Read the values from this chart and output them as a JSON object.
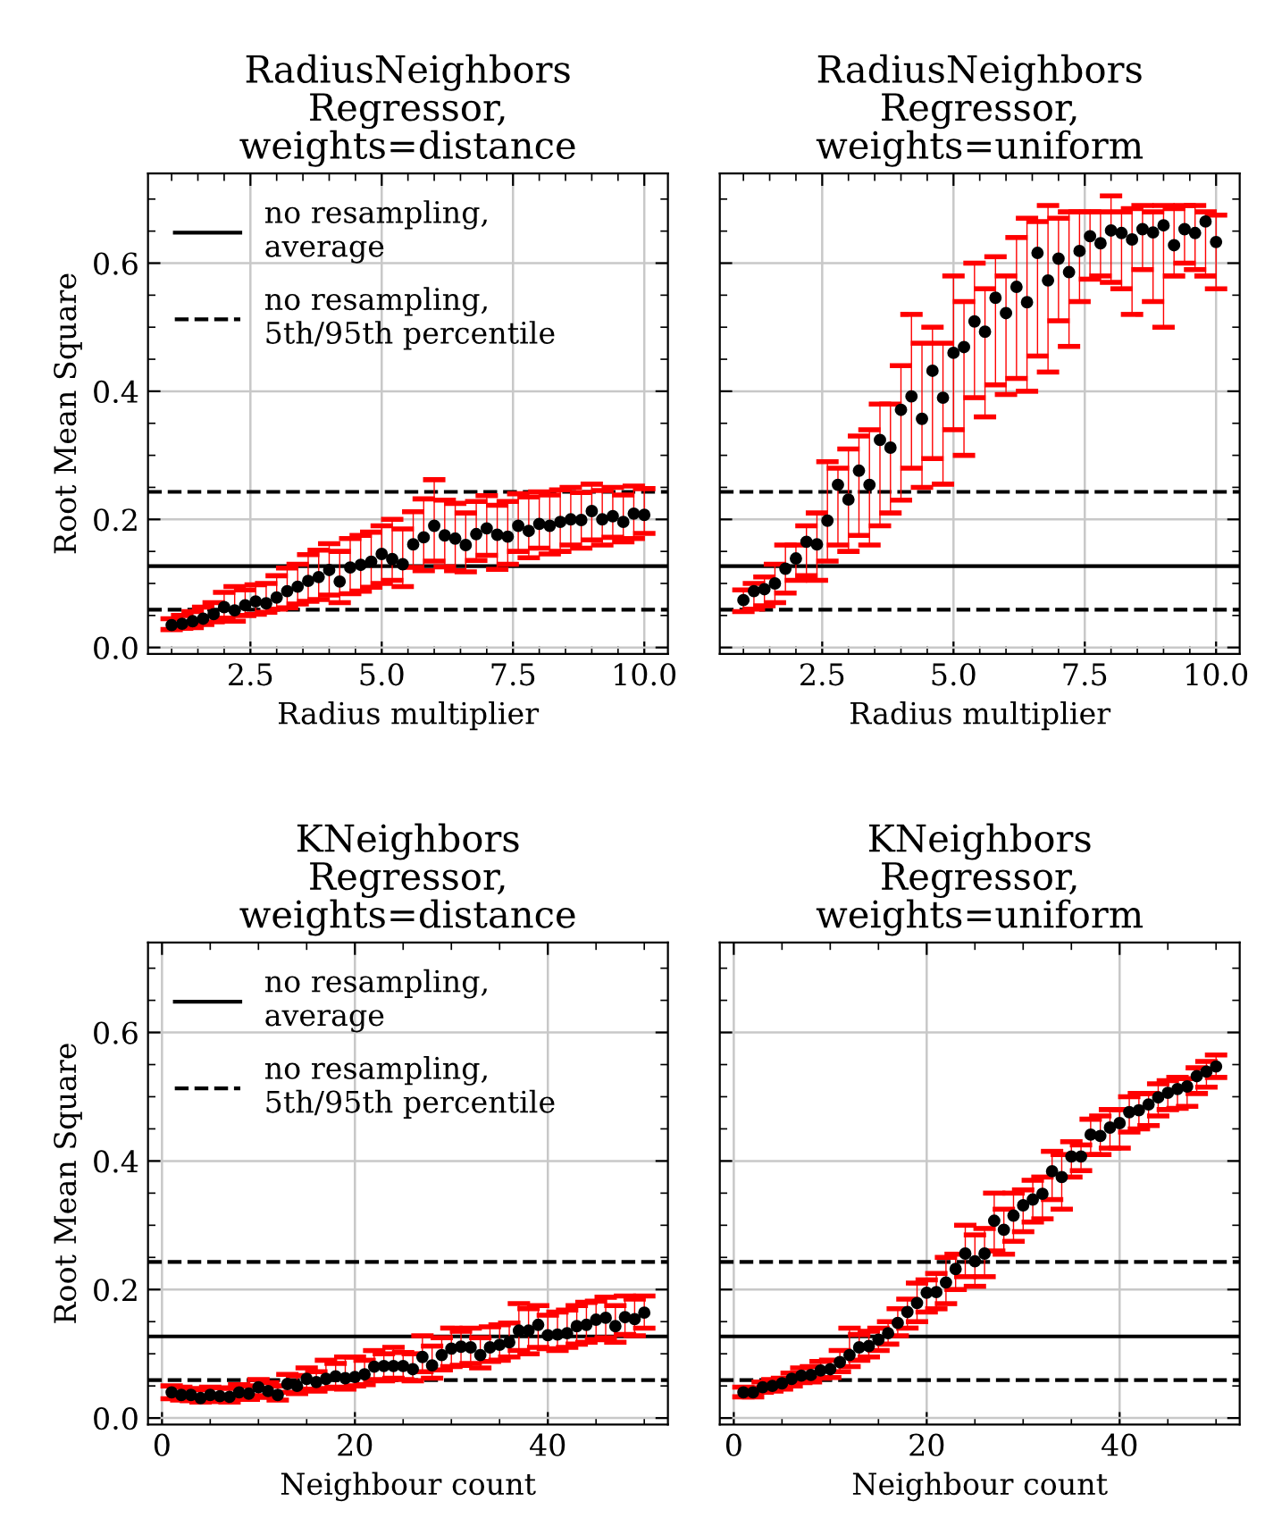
{
  "chart_data": [
    {
      "type": "scatter",
      "title": "RadiusNeighbors\nRegressor,\nweights=distance",
      "xlabel": "Radius multiplier",
      "ylabel": "Root Mean Square",
      "x": [
        1.0,
        1.2,
        1.4,
        1.6,
        1.8,
        2.0,
        2.2,
        2.4,
        2.6,
        2.8,
        3.0,
        3.2,
        3.4,
        3.6,
        3.8,
        4.0,
        4.2,
        4.4,
        4.6,
        4.8,
        5.0,
        5.2,
        5.4,
        5.6,
        5.8,
        6.0,
        6.2,
        6.4,
        6.6,
        6.8,
        7.0,
        7.2,
        7.4,
        7.6,
        7.8,
        8.0,
        8.2,
        8.4,
        8.6,
        8.8,
        9.0,
        9.2,
        9.4,
        9.6,
        9.8,
        10.0
      ],
      "series": [
        {
          "color": "#000000",
          "marker": "circle",
          "values": [
            0.035,
            0.037,
            0.041,
            0.045,
            0.052,
            0.063,
            0.058,
            0.066,
            0.072,
            0.069,
            0.078,
            0.088,
            0.095,
            0.104,
            0.11,
            0.121,
            0.103,
            0.125,
            0.129,
            0.134,
            0.146,
            0.138,
            0.13,
            0.161,
            0.172,
            0.19,
            0.175,
            0.17,
            0.16,
            0.177,
            0.186,
            0.176,
            0.173,
            0.19,
            0.182,
            0.193,
            0.19,
            0.196,
            0.2,
            0.199,
            0.213,
            0.2,
            0.205,
            0.196,
            0.209,
            0.207
          ],
          "errors": [
            [
              0.028,
              0.045
            ],
            [
              0.03,
              0.05
            ],
            [
              0.031,
              0.056
            ],
            [
              0.036,
              0.063
            ],
            [
              0.04,
              0.07
            ],
            [
              0.046,
              0.086
            ],
            [
              0.041,
              0.095
            ],
            [
              0.05,
              0.09
            ],
            [
              0.052,
              0.098
            ],
            [
              0.055,
              0.1
            ],
            [
              0.06,
              0.112
            ],
            [
              0.062,
              0.124
            ],
            [
              0.068,
              0.13
            ],
            [
              0.072,
              0.145
            ],
            [
              0.075,
              0.152
            ],
            [
              0.082,
              0.162
            ],
            [
              0.07,
              0.15
            ],
            [
              0.084,
              0.17
            ],
            [
              0.088,
              0.175
            ],
            [
              0.094,
              0.18
            ],
            [
              0.1,
              0.19
            ],
            [
              0.105,
              0.2
            ],
            [
              0.095,
              0.185
            ],
            [
              0.125,
              0.212
            ],
            [
              0.12,
              0.232
            ],
            [
              0.135,
              0.262
            ],
            [
              0.126,
              0.23
            ],
            [
              0.12,
              0.225
            ],
            [
              0.118,
              0.21
            ],
            [
              0.136,
              0.228
            ],
            [
              0.144,
              0.237
            ],
            [
              0.122,
              0.222
            ],
            [
              0.13,
              0.228
            ],
            [
              0.15,
              0.24
            ],
            [
              0.14,
              0.235
            ],
            [
              0.155,
              0.243
            ],
            [
              0.146,
              0.238
            ],
            [
              0.15,
              0.246
            ],
            [
              0.16,
              0.25
            ],
            [
              0.155,
              0.242
            ],
            [
              0.168,
              0.255
            ],
            [
              0.16,
              0.245
            ],
            [
              0.172,
              0.25
            ],
            [
              0.165,
              0.238
            ],
            [
              0.17,
              0.252
            ],
            [
              0.178,
              0.248
            ]
          ]
        }
      ],
      "ref_lines": [
        {
          "axis": "y",
          "value": 0.127,
          "label": "no resampling,\naverage",
          "line_style": "solid"
        },
        {
          "axis": "y",
          "value": 0.243,
          "label": "no resampling,\n5th/95th percentile",
          "line_style": "dashed"
        },
        {
          "axis": "y",
          "value": 0.059,
          "line_style": "dashed"
        }
      ],
      "xlim": [
        0.55,
        10.45
      ],
      "xticks": [
        {
          "value": 2.5,
          "label": "2.5"
        },
        {
          "value": 5.0,
          "label": "5.0"
        },
        {
          "value": 7.5,
          "label": "7.5"
        },
        {
          "value": 10.0,
          "label": "10.0"
        }
      ],
      "ylim": [
        -0.01,
        0.74
      ],
      "yticks": [
        {
          "value": 0.0,
          "label": "0.0"
        },
        0.2,
        0.4,
        0.6
      ],
      "grid": true,
      "legend": "top left"
    },
    {
      "type": "scatter",
      "title": "RadiusNeighbors\nRegressor,\nweights=uniform",
      "xlabel": "Radius multiplier",
      "x": [
        1.0,
        1.2,
        1.4,
        1.6,
        1.8,
        2.0,
        2.2,
        2.4,
        2.6,
        2.8,
        3.0,
        3.2,
        3.4,
        3.6,
        3.8,
        4.0,
        4.2,
        4.4,
        4.6,
        4.8,
        5.0,
        5.2,
        5.4,
        5.6,
        5.8,
        6.0,
        6.2,
        6.4,
        6.6,
        6.8,
        7.0,
        7.2,
        7.4,
        7.6,
        7.8,
        8.0,
        8.2,
        8.4,
        8.6,
        8.8,
        9.0,
        9.2,
        9.4,
        9.6,
        9.8,
        10.0
      ],
      "series": [
        {
          "color": "#000000",
          "marker": "circle",
          "values": [
            0.074,
            0.088,
            0.091,
            0.1,
            0.123,
            0.139,
            0.165,
            0.161,
            0.198,
            0.254,
            0.231,
            0.276,
            0.254,
            0.324,
            0.312,
            0.371,
            0.392,
            0.357,
            0.432,
            0.39,
            0.46,
            0.469,
            0.509,
            0.493,
            0.546,
            0.522,
            0.563,
            0.539,
            0.616,
            0.573,
            0.607,
            0.586,
            0.619,
            0.642,
            0.631,
            0.651,
            0.647,
            0.637,
            0.653,
            0.648,
            0.659,
            0.628,
            0.653,
            0.647,
            0.665,
            0.633
          ],
          "errors": [
            [
              0.056,
              0.09
            ],
            [
              0.06,
              0.1
            ],
            [
              0.065,
              0.11
            ],
            [
              0.07,
              0.13
            ],
            [
              0.085,
              0.16
            ],
            [
              0.105,
              0.16
            ],
            [
              0.112,
              0.19
            ],
            [
              0.105,
              0.21
            ],
            [
              0.135,
              0.29
            ],
            [
              0.16,
              0.28
            ],
            [
              0.15,
              0.31
            ],
            [
              0.175,
              0.33
            ],
            [
              0.16,
              0.34
            ],
            [
              0.19,
              0.38
            ],
            [
              0.21,
              0.38
            ],
            [
              0.23,
              0.44
            ],
            [
              0.28,
              0.52
            ],
            [
              0.25,
              0.475
            ],
            [
              0.295,
              0.5
            ],
            [
              0.255,
              0.475
            ],
            [
              0.34,
              0.58
            ],
            [
              0.3,
              0.54
            ],
            [
              0.39,
              0.6
            ],
            [
              0.36,
              0.56
            ],
            [
              0.41,
              0.61
            ],
            [
              0.395,
              0.58
            ],
            [
              0.42,
              0.64
            ],
            [
              0.4,
              0.67
            ],
            [
              0.455,
              0.665
            ],
            [
              0.43,
              0.69
            ],
            [
              0.51,
              0.67
            ],
            [
              0.47,
              0.68
            ],
            [
              0.54,
              0.68
            ],
            [
              0.575,
              0.68
            ],
            [
              0.58,
              0.68
            ],
            [
              0.57,
              0.705
            ],
            [
              0.56,
              0.68
            ],
            [
              0.52,
              0.685
            ],
            [
              0.59,
              0.69
            ],
            [
              0.54,
              0.68
            ],
            [
              0.5,
              0.69
            ],
            [
              0.58,
              0.685
            ],
            [
              0.6,
              0.69
            ],
            [
              0.59,
              0.69
            ],
            [
              0.58,
              0.68
            ],
            [
              0.56,
              0.675
            ]
          ]
        }
      ],
      "ref_lines": [
        {
          "axis": "y",
          "value": 0.127,
          "line_style": "solid"
        },
        {
          "axis": "y",
          "value": 0.243,
          "line_style": "dashed"
        },
        {
          "axis": "y",
          "value": 0.059,
          "line_style": "dashed"
        }
      ],
      "xlim": [
        0.55,
        10.45
      ],
      "xticks": [
        {
          "value": 2.5,
          "label": "2.5"
        },
        {
          "value": 5.0,
          "label": "5.0"
        },
        {
          "value": 7.5,
          "label": "7.5"
        },
        {
          "value": 10.0,
          "label": "10.0"
        }
      ],
      "ylim": [
        -0.01,
        0.74
      ],
      "yticks": [
        0.0,
        0.2,
        0.4,
        0.6
      ],
      "grid": true,
      "tick_labels": "x"
    },
    {
      "type": "scatter",
      "title": "KNeighbors\nRegressor,\nweights=distance",
      "xlabel": "Neighbour count",
      "ylabel": "Root Mean Square",
      "x": [
        1,
        2,
        3,
        4,
        5,
        6,
        7,
        8,
        9,
        10,
        11,
        12,
        13,
        14,
        15,
        16,
        17,
        18,
        19,
        20,
        21,
        22,
        23,
        24,
        25,
        26,
        27,
        28,
        29,
        30,
        31,
        32,
        33,
        34,
        35,
        36,
        37,
        38,
        39,
        40,
        41,
        42,
        43,
        44,
        45,
        46,
        47,
        48,
        49,
        50
      ],
      "series": [
        {
          "color": "#000000",
          "marker": "circle",
          "values": [
            0.04,
            0.036,
            0.036,
            0.031,
            0.036,
            0.034,
            0.033,
            0.04,
            0.038,
            0.048,
            0.042,
            0.036,
            0.053,
            0.05,
            0.061,
            0.056,
            0.061,
            0.065,
            0.062,
            0.064,
            0.068,
            0.08,
            0.081,
            0.081,
            0.081,
            0.076,
            0.095,
            0.082,
            0.098,
            0.108,
            0.111,
            0.11,
            0.098,
            0.11,
            0.114,
            0.118,
            0.136,
            0.136,
            0.145,
            0.129,
            0.13,
            0.132,
            0.143,
            0.145,
            0.153,
            0.156,
            0.143,
            0.157,
            0.154,
            0.164
          ],
          "errors": [
            [
              0.03,
              0.05
            ],
            [
              0.028,
              0.048
            ],
            [
              0.027,
              0.046
            ],
            [
              0.025,
              0.044
            ],
            [
              0.026,
              0.048
            ],
            [
              0.026,
              0.047
            ],
            [
              0.025,
              0.046
            ],
            [
              0.03,
              0.052
            ],
            [
              0.029,
              0.05
            ],
            [
              0.035,
              0.06
            ],
            [
              0.032,
              0.055
            ],
            [
              0.028,
              0.05
            ],
            [
              0.04,
              0.068
            ],
            [
              0.038,
              0.066
            ],
            [
              0.045,
              0.078
            ],
            [
              0.042,
              0.072
            ],
            [
              0.046,
              0.09
            ],
            [
              0.048,
              0.085
            ],
            [
              0.045,
              0.095
            ],
            [
              0.05,
              0.095
            ],
            [
              0.052,
              0.09
            ],
            [
              0.06,
              0.105
            ],
            [
              0.058,
              0.1
            ],
            [
              0.062,
              0.11
            ],
            [
              0.06,
              0.102
            ],
            [
              0.058,
              0.1
            ],
            [
              0.072,
              0.128
            ],
            [
              0.062,
              0.112
            ],
            [
              0.075,
              0.125
            ],
            [
              0.08,
              0.14
            ],
            [
              0.082,
              0.135
            ],
            [
              0.085,
              0.14
            ],
            [
              0.078,
              0.125
            ],
            [
              0.088,
              0.142
            ],
            [
              0.09,
              0.145
            ],
            [
              0.095,
              0.148
            ],
            [
              0.105,
              0.178
            ],
            [
              0.1,
              0.17
            ],
            [
              0.11,
              0.175
            ],
            [
              0.108,
              0.16
            ],
            [
              0.105,
              0.165
            ],
            [
              0.11,
              0.168
            ],
            [
              0.115,
              0.175
            ],
            [
              0.118,
              0.18
            ],
            [
              0.122,
              0.182
            ],
            [
              0.125,
              0.188
            ],
            [
              0.118,
              0.175
            ],
            [
              0.13,
              0.19
            ],
            [
              0.128,
              0.185
            ],
            [
              0.14,
              0.19
            ]
          ]
        }
      ],
      "ref_lines": [
        {
          "axis": "y",
          "value": 0.127,
          "label": "no resampling,\naverage",
          "line_style": "solid"
        },
        {
          "axis": "y",
          "value": 0.243,
          "label": "no resampling,\n5th/95th percentile",
          "line_style": "dashed"
        },
        {
          "axis": "y",
          "value": 0.059,
          "line_style": "dashed"
        }
      ],
      "xlim": [
        -1.45,
        52.45
      ],
      "xticks": [
        0,
        20,
        40
      ],
      "ylim": [
        -0.01,
        0.74
      ],
      "yticks": [
        {
          "value": 0.0,
          "label": "0.0"
        },
        0.2,
        0.4,
        0.6
      ],
      "grid": true,
      "legend": "top left"
    },
    {
      "type": "scatter",
      "title": "KNeighbors\nRegressor,\nweights=uniform",
      "xlabel": "Neighbour count",
      "x": [
        1,
        2,
        3,
        4,
        5,
        6,
        7,
        8,
        9,
        10,
        11,
        12,
        13,
        14,
        15,
        16,
        17,
        18,
        19,
        20,
        21,
        22,
        23,
        24,
        25,
        26,
        27,
        28,
        29,
        30,
        31,
        32,
        33,
        34,
        35,
        36,
        37,
        38,
        39,
        40,
        41,
        42,
        43,
        44,
        45,
        46,
        47,
        48,
        49,
        50
      ],
      "series": [
        {
          "color": "#000000",
          "marker": "circle",
          "values": [
            0.04,
            0.04,
            0.048,
            0.05,
            0.054,
            0.061,
            0.066,
            0.067,
            0.074,
            0.076,
            0.087,
            0.098,
            0.11,
            0.112,
            0.122,
            0.132,
            0.148,
            0.165,
            0.179,
            0.195,
            0.196,
            0.211,
            0.232,
            0.256,
            0.244,
            0.256,
            0.307,
            0.293,
            0.315,
            0.331,
            0.34,
            0.349,
            0.384,
            0.375,
            0.407,
            0.407,
            0.441,
            0.439,
            0.452,
            0.459,
            0.476,
            0.479,
            0.488,
            0.499,
            0.506,
            0.512,
            0.516,
            0.532,
            0.539,
            0.547
          ],
          "errors": [
            [
              0.033,
              0.048
            ],
            [
              0.033,
              0.047
            ],
            [
              0.04,
              0.056
            ],
            [
              0.042,
              0.06
            ],
            [
              0.045,
              0.062
            ],
            [
              0.05,
              0.07
            ],
            [
              0.055,
              0.078
            ],
            [
              0.056,
              0.08
            ],
            [
              0.062,
              0.088
            ],
            [
              0.063,
              0.09
            ],
            [
              0.072,
              0.105
            ],
            [
              0.08,
              0.14
            ],
            [
              0.09,
              0.13
            ],
            [
              0.095,
              0.135
            ],
            [
              0.105,
              0.14
            ],
            [
              0.115,
              0.15
            ],
            [
              0.128,
              0.17
            ],
            [
              0.14,
              0.185
            ],
            [
              0.15,
              0.21
            ],
            [
              0.165,
              0.215
            ],
            [
              0.17,
              0.225
            ],
            [
              0.178,
              0.25
            ],
            [
              0.2,
              0.255
            ],
            [
              0.22,
              0.3
            ],
            [
              0.205,
              0.285
            ],
            [
              0.22,
              0.295
            ],
            [
              0.26,
              0.35
            ],
            [
              0.255,
              0.325
            ],
            [
              0.275,
              0.35
            ],
            [
              0.29,
              0.355
            ],
            [
              0.305,
              0.37
            ],
            [
              0.31,
              0.375
            ],
            [
              0.34,
              0.415
            ],
            [
              0.325,
              0.41
            ],
            [
              0.375,
              0.43
            ],
            [
              0.385,
              0.425
            ],
            [
              0.41,
              0.465
            ],
            [
              0.41,
              0.47
            ],
            [
              0.42,
              0.48
            ],
            [
              0.42,
              0.48
            ],
            [
              0.445,
              0.5
            ],
            [
              0.45,
              0.505
            ],
            [
              0.455,
              0.505
            ],
            [
              0.47,
              0.52
            ],
            [
              0.48,
              0.525
            ],
            [
              0.482,
              0.53
            ],
            [
              0.485,
              0.528
            ],
            [
              0.505,
              0.545
            ],
            [
              0.515,
              0.555
            ],
            [
              0.53,
              0.565
            ]
          ]
        }
      ],
      "ref_lines": [
        {
          "axis": "y",
          "value": 0.127,
          "line_style": "solid"
        },
        {
          "axis": "y",
          "value": 0.243,
          "line_style": "dashed"
        },
        {
          "axis": "y",
          "value": 0.059,
          "line_style": "dashed"
        }
      ],
      "xlim": [
        -1.45,
        52.45
      ],
      "xticks": [
        0,
        20,
        40
      ],
      "ylim": [
        -0.01,
        0.74
      ],
      "yticks": [
        0.0,
        0.2,
        0.4,
        0.6
      ],
      "grid": true,
      "tick_labels": "x"
    }
  ]
}
